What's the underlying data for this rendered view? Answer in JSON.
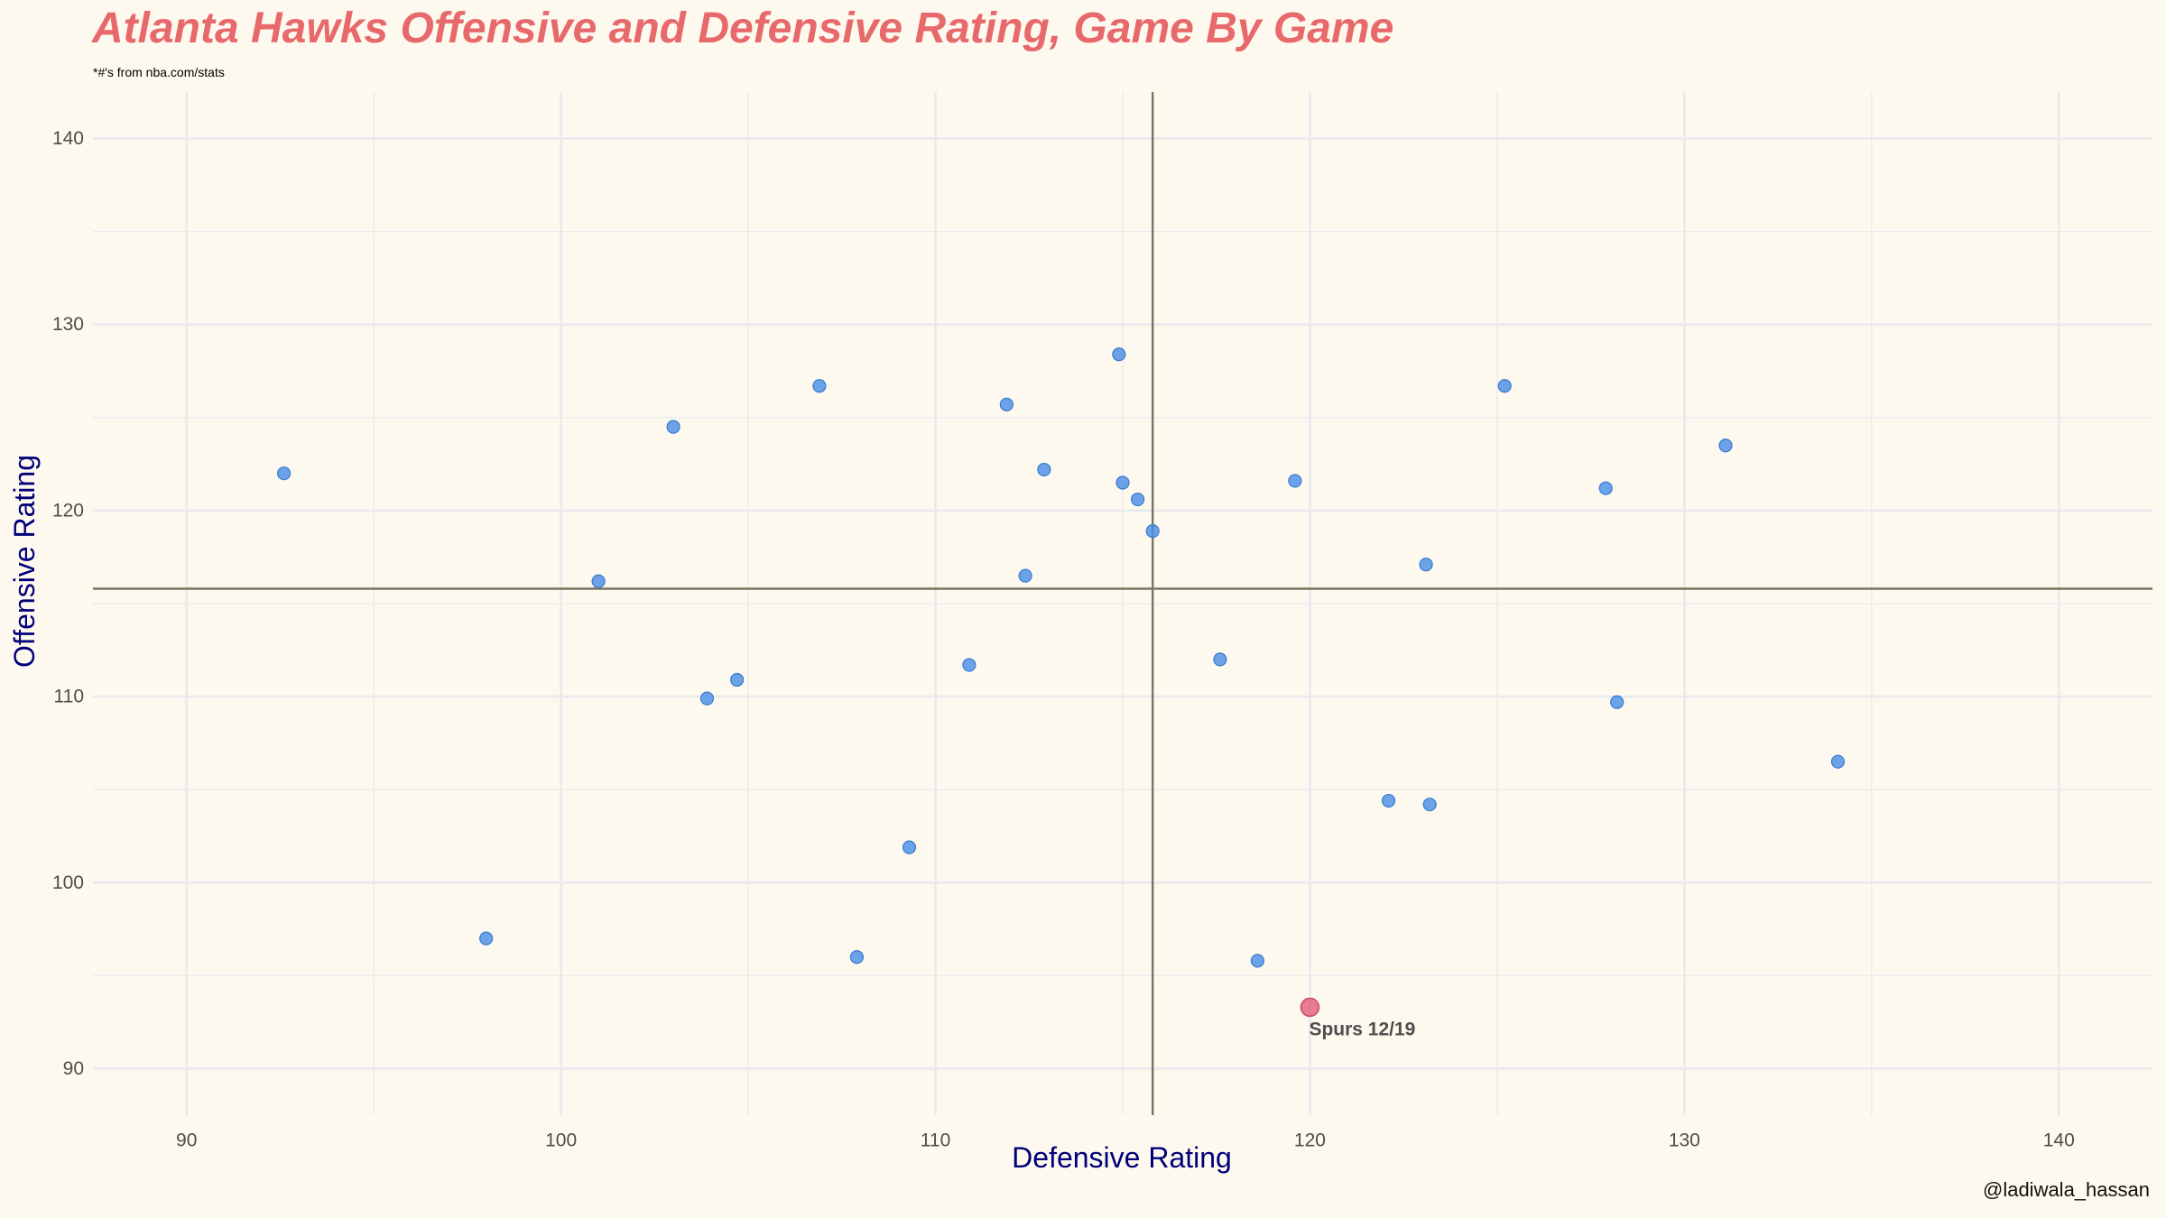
{
  "chart_data": {
    "type": "scatter",
    "title": "Atlanta Hawks Offensive and Defensive Rating, Game By Game",
    "subtitle": "*#'s from nba.com/stats",
    "xlabel": "Defensive Rating",
    "ylabel": "Offensive Rating",
    "xlim": [
      87.5,
      142.5
    ],
    "ylim": [
      87.5,
      142.5
    ],
    "xticks": [
      "90",
      "100",
      "110",
      "120",
      "130",
      "140"
    ],
    "yticks": [
      "90",
      "100",
      "110",
      "120",
      "130",
      "140"
    ],
    "grid": true,
    "reference_lines": {
      "x_mean": 115.8,
      "y_mean": 115.8
    },
    "points": [
      {
        "x": 92.6,
        "y": 122.0
      },
      {
        "x": 98.0,
        "y": 97.0
      },
      {
        "x": 101.0,
        "y": 116.2
      },
      {
        "x": 103.0,
        "y": 124.5
      },
      {
        "x": 103.9,
        "y": 109.9
      },
      {
        "x": 104.7,
        "y": 110.9
      },
      {
        "x": 106.9,
        "y": 126.7
      },
      {
        "x": 107.9,
        "y": 96.0
      },
      {
        "x": 109.3,
        "y": 101.9
      },
      {
        "x": 110.9,
        "y": 111.7
      },
      {
        "x": 111.9,
        "y": 125.7
      },
      {
        "x": 112.4,
        "y": 116.5
      },
      {
        "x": 112.9,
        "y": 122.2
      },
      {
        "x": 114.9,
        "y": 128.4
      },
      {
        "x": 115.0,
        "y": 121.5
      },
      {
        "x": 115.4,
        "y": 120.6
      },
      {
        "x": 115.8,
        "y": 118.9
      },
      {
        "x": 117.6,
        "y": 112.0
      },
      {
        "x": 118.6,
        "y": 95.8
      },
      {
        "x": 119.6,
        "y": 121.6
      },
      {
        "x": 122.1,
        "y": 104.4
      },
      {
        "x": 123.1,
        "y": 117.1
      },
      {
        "x": 123.2,
        "y": 104.2
      },
      {
        "x": 125.2,
        "y": 126.7
      },
      {
        "x": 127.9,
        "y": 121.2
      },
      {
        "x": 128.2,
        "y": 109.7
      },
      {
        "x": 131.1,
        "y": 123.5
      },
      {
        "x": 134.1,
        "y": 106.5
      }
    ],
    "highlight": {
      "x": 120.0,
      "y": 93.3,
      "label": "Spurs 12/19"
    },
    "colors": {
      "point": "#4a8fe7",
      "highlight": "#e05070",
      "reference_line": "#7a7560",
      "grid": "#e9e9ee",
      "title": "#e8696b",
      "axis_title": "#00007a"
    }
  },
  "credit": "@ladiwala_hassan"
}
